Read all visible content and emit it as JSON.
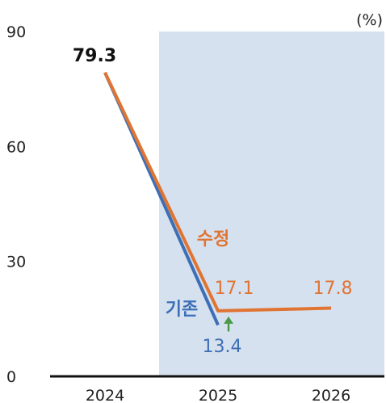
{
  "chart_data": {
    "type": "line",
    "unit": "(%)",
    "categories": [
      "2024",
      "2025",
      "2026"
    ],
    "ylim": [
      0,
      90
    ],
    "yticks": [
      0,
      30,
      60,
      90
    ],
    "grid": false,
    "forecast_shading_from": "2024.5",
    "series": [
      {
        "name": "기존",
        "color": "#3d6fb6",
        "values": [
          79.3,
          13.4,
          null
        ]
      },
      {
        "name": "수정",
        "color": "#e07432",
        "values": [
          79.3,
          17.1,
          17.8
        ]
      }
    ],
    "data_labels": {
      "start": "79.3",
      "baseline_2025": "13.4",
      "revised_2025": "17.1",
      "revised_2026": "17.8"
    },
    "arrow_color": "#4a9a4a"
  }
}
